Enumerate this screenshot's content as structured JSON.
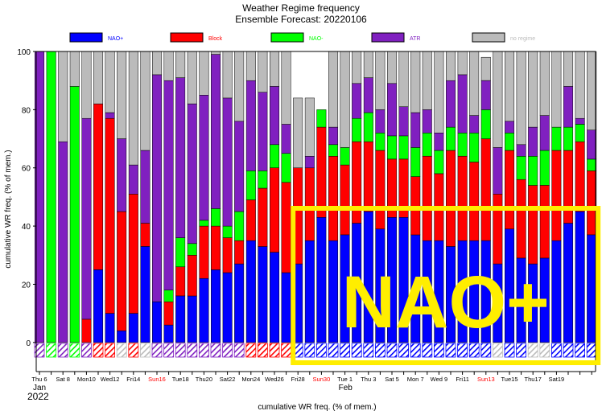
{
  "chart_data": {
    "type": "bar",
    "stacked": true,
    "title": "Weather Regime frequency",
    "subtitle": "Ensemble Forecast: 20220106",
    "ylabel": "cumulative WR freq. (% of mem.)",
    "xlabel": "cumulative WR freq. (% of mem.)",
    "ylim": [
      -10,
      100
    ],
    "yticks": [
      0,
      20,
      40,
      60,
      80,
      100
    ],
    "grid": false,
    "legend_position": "top",
    "series": [
      {
        "name": "NAO+",
        "color": "#0000ff",
        "values": [
          0,
          0,
          0,
          0,
          0,
          25,
          10,
          4,
          10,
          33,
          14,
          6,
          16,
          16,
          22,
          25,
          24,
          27,
          35,
          33,
          31,
          24,
          27,
          35,
          43,
          35,
          37,
          41,
          45,
          39,
          43,
          43,
          37,
          35,
          35,
          33,
          35,
          35,
          35,
          27,
          39,
          29,
          27,
          29,
          35,
          41,
          45,
          37
        ]
      },
      {
        "name": "Block",
        "color": "#ff0000",
        "values": [
          0,
          0,
          0,
          0,
          8,
          57,
          67,
          41,
          41,
          8,
          0,
          8,
          10,
          14,
          18,
          15,
          12,
          8,
          14,
          20,
          29,
          31,
          33,
          25,
          31,
          29,
          24,
          28,
          24,
          27,
          20,
          20,
          20,
          29,
          23,
          33,
          29,
          27,
          35,
          24,
          27,
          27,
          27,
          25,
          31,
          25,
          24,
          22
        ]
      },
      {
        "name": "NAO-",
        "color": "#00ff00",
        "values": [
          0,
          100,
          0,
          88,
          0,
          0,
          0,
          0,
          0,
          0,
          0,
          4,
          10,
          4,
          2,
          6,
          4,
          10,
          10,
          6,
          8,
          10,
          0,
          0,
          6,
          4,
          6,
          8,
          10,
          6,
          8,
          8,
          10,
          8,
          8,
          8,
          8,
          10,
          10,
          0,
          6,
          8,
          10,
          12,
          8,
          8,
          6,
          4
        ]
      },
      {
        "name": "ATR",
        "color": "#8020c0",
        "values": [
          100,
          0,
          69,
          0,
          69,
          0,
          2,
          25,
          10,
          25,
          78,
          72,
          55,
          48,
          43,
          53,
          44,
          31,
          31,
          27,
          20,
          10,
          0,
          4,
          0,
          6,
          0,
          12,
          12,
          8,
          18,
          10,
          12,
          8,
          6,
          16,
          20,
          6,
          10,
          16,
          4,
          4,
          10,
          12,
          0,
          14,
          2,
          10
        ]
      },
      {
        "name": "no regime",
        "color": "#bbbbbb",
        "values": [
          0,
          0,
          31,
          12,
          23,
          18,
          21,
          30,
          39,
          34,
          8,
          10,
          9,
          18,
          15,
          1,
          16,
          24,
          10,
          14,
          12,
          25,
          24,
          20,
          0,
          26,
          33,
          11,
          9,
          20,
          11,
          19,
          21,
          20,
          28,
          10,
          8,
          22,
          8,
          33,
          24,
          32,
          26,
          22,
          26,
          12,
          23,
          27
        ]
      }
    ],
    "weather_regime_per_day": [
      "ATR",
      "NAO-",
      "ATR",
      "NAO-",
      "ATR",
      "Block",
      "Block",
      "no regime",
      "Block",
      "no regime",
      "ATR",
      "ATR",
      "ATR",
      "ATR",
      "ATR",
      "ATR",
      "ATR",
      "ATR",
      "Block",
      "Block",
      "Block",
      "Block",
      "NAO+",
      "NAO+",
      "NAO+",
      "NAO+",
      "NAO+",
      "NAO+",
      "NAO+",
      "NAO+",
      "NAO+",
      "NAO+",
      "NAO+",
      "NAO+",
      "NAO+",
      "NAO+",
      "NAO+",
      "NAO+",
      "NAO+",
      "no regime",
      "NAO+",
      "NAO+",
      "no regime",
      "no regime",
      "NAO+",
      "NAO+",
      "NAO+",
      "NAO+"
    ],
    "x_tick_labels": [
      {
        "day": 0,
        "label": "Thu 6",
        "color": "#000000"
      },
      {
        "day": 2,
        "label": "Sat 8",
        "color": "#000000"
      },
      {
        "day": 4,
        "label": "Mon10",
        "color": "#000000"
      },
      {
        "day": 6,
        "label": "Wed12",
        "color": "#000000"
      },
      {
        "day": 8,
        "label": "Fri14",
        "color": "#000000"
      },
      {
        "day": 10,
        "label": "Sun16",
        "color": "#ff0000"
      },
      {
        "day": 12,
        "label": "Tue18",
        "color": "#000000"
      },
      {
        "day": 14,
        "label": "Thu20",
        "color": "#000000"
      },
      {
        "day": 16,
        "label": "Sat22",
        "color": "#000000"
      },
      {
        "day": 18,
        "label": "Mon24",
        "color": "#000000"
      },
      {
        "day": 20,
        "label": "Wed26",
        "color": "#000000"
      },
      {
        "day": 22,
        "label": "Fri28",
        "color": "#000000"
      },
      {
        "day": 24,
        "label": "Sun30",
        "color": "#ff0000"
      },
      {
        "day": 26,
        "label": "Tue 1",
        "color": "#000000"
      },
      {
        "day": 28,
        "label": "Thu 3",
        "color": "#000000"
      },
      {
        "day": 30,
        "label": "Sat 5",
        "color": "#000000"
      },
      {
        "day": 32,
        "label": "Mon 7",
        "color": "#000000"
      },
      {
        "day": 34,
        "label": "Wed 9",
        "color": "#000000"
      },
      {
        "day": 36,
        "label": "Fri11",
        "color": "#000000"
      },
      {
        "day": 38,
        "label": "Sun13",
        "color": "#ff0000"
      },
      {
        "day": 40,
        "label": "Tue15",
        "color": "#000000"
      },
      {
        "day": 42,
        "label": "Thu17",
        "color": "#000000"
      },
      {
        "day": 44,
        "label": "Sat19",
        "color": "#000000"
      }
    ],
    "month_labels": [
      {
        "day": 0,
        "label": "Jan"
      },
      {
        "day": 26,
        "label": "Feb"
      }
    ],
    "year_label": "2022",
    "annotation": {
      "text": "NAO+",
      "color": "#ffee00",
      "from_day": 22,
      "to_day": 47
    }
  }
}
